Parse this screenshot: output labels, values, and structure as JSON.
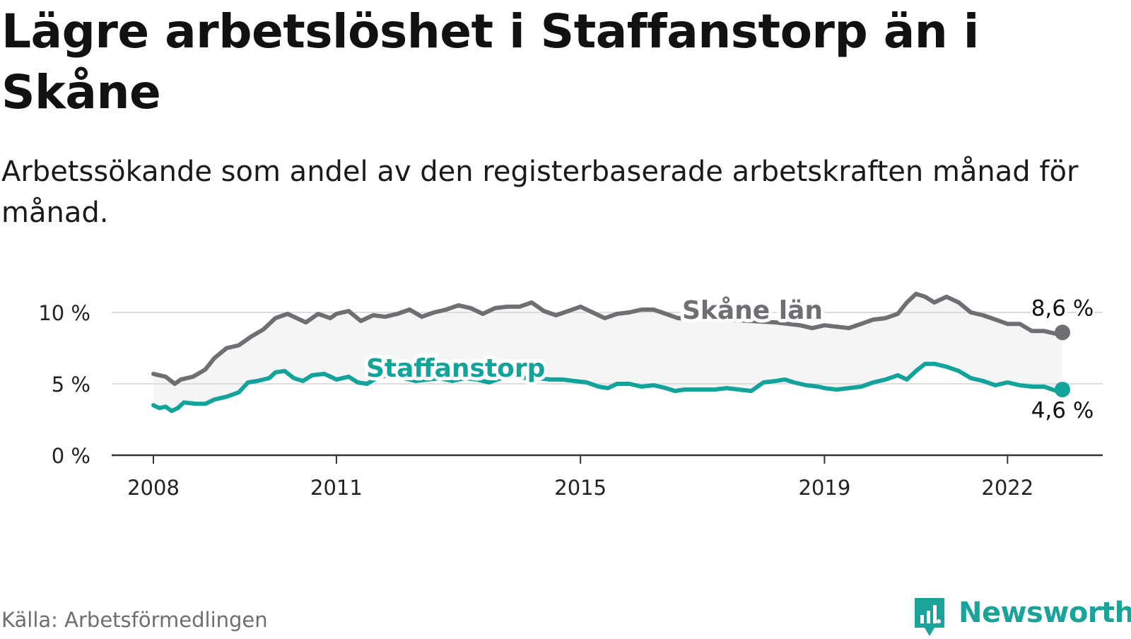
{
  "title": "Lägre arbetslöshet i Staffanstorp än i Skåne",
  "subtitle": "Arbetssökande som andel av den registerbaserade arbetskraften månad för månad.",
  "source": "Källa: Arbetsförmedlingen",
  "brand": {
    "name": "Newsworthy",
    "color": "#1aa39a",
    "icon": "bar-chart-speech-bubble-icon"
  },
  "colors": {
    "skane": "#6f6e73",
    "staffanstorp": "#12a39a",
    "band": "#f5f5f5",
    "grid": "#dddddd",
    "axis": "#333333"
  },
  "chart_data": {
    "type": "line",
    "ylim": [
      0,
      10.5
    ],
    "yticks": [
      {
        "value": 0,
        "label": "0 %"
      },
      {
        "value": 5,
        "label": "5 %"
      },
      {
        "value": 10,
        "label": "10 %"
      }
    ],
    "xticks": [
      {
        "value": 2008,
        "label": "2008"
      },
      {
        "value": 2011,
        "label": "2011"
      },
      {
        "value": 2015,
        "label": "2015"
      },
      {
        "value": 2019,
        "label": "2019"
      },
      {
        "value": 2022,
        "label": "2022"
      }
    ],
    "grid": true,
    "series": [
      {
        "name": "Skåne län",
        "color": "#6f6e73",
        "end_label": "8,6 %",
        "points": [
          [
            2008.0,
            5.7
          ],
          [
            2008.2,
            5.5
          ],
          [
            2008.35,
            5.0
          ],
          [
            2008.45,
            5.3
          ],
          [
            2008.65,
            5.5
          ],
          [
            2008.85,
            6.0
          ],
          [
            2009.0,
            6.8
          ],
          [
            2009.2,
            7.5
          ],
          [
            2009.4,
            7.7
          ],
          [
            2009.6,
            8.3
          ],
          [
            2009.8,
            8.8
          ],
          [
            2010.0,
            9.6
          ],
          [
            2010.2,
            9.9
          ],
          [
            2010.35,
            9.6
          ],
          [
            2010.5,
            9.3
          ],
          [
            2010.7,
            9.9
          ],
          [
            2010.9,
            9.6
          ],
          [
            2011.0,
            9.9
          ],
          [
            2011.2,
            10.1
          ],
          [
            2011.4,
            9.4
          ],
          [
            2011.6,
            9.8
          ],
          [
            2011.8,
            9.7
          ],
          [
            2012.0,
            9.9
          ],
          [
            2012.2,
            10.2
          ],
          [
            2012.4,
            9.7
          ],
          [
            2012.6,
            10.0
          ],
          [
            2012.8,
            10.2
          ],
          [
            2013.0,
            10.5
          ],
          [
            2013.2,
            10.3
          ],
          [
            2013.4,
            9.9
          ],
          [
            2013.6,
            10.3
          ],
          [
            2013.8,
            10.4
          ],
          [
            2014.0,
            10.4
          ],
          [
            2014.2,
            10.7
          ],
          [
            2014.4,
            10.1
          ],
          [
            2014.6,
            9.8
          ],
          [
            2014.8,
            10.1
          ],
          [
            2015.0,
            10.4
          ],
          [
            2015.2,
            10.0
          ],
          [
            2015.4,
            9.6
          ],
          [
            2015.6,
            9.9
          ],
          [
            2015.8,
            10.0
          ],
          [
            2016.0,
            10.2
          ],
          [
            2016.2,
            10.2
          ],
          [
            2016.4,
            9.9
          ],
          [
            2016.6,
            9.6
          ],
          [
            2016.8,
            9.6
          ],
          [
            2017.0,
            9.7
          ],
          [
            2017.4,
            9.5
          ],
          [
            2017.8,
            9.4
          ],
          [
            2018.2,
            9.3
          ],
          [
            2018.6,
            9.1
          ],
          [
            2018.8,
            8.9
          ],
          [
            2019.0,
            9.1
          ],
          [
            2019.2,
            9.0
          ],
          [
            2019.4,
            8.9
          ],
          [
            2019.6,
            9.2
          ],
          [
            2019.8,
            9.5
          ],
          [
            2020.0,
            9.6
          ],
          [
            2020.2,
            9.9
          ],
          [
            2020.35,
            10.7
          ],
          [
            2020.5,
            11.3
          ],
          [
            2020.65,
            11.1
          ],
          [
            2020.8,
            10.7
          ],
          [
            2021.0,
            11.1
          ],
          [
            2021.2,
            10.7
          ],
          [
            2021.4,
            10.0
          ],
          [
            2021.6,
            9.8
          ],
          [
            2021.8,
            9.5
          ],
          [
            2022.0,
            9.2
          ],
          [
            2022.2,
            9.2
          ],
          [
            2022.4,
            8.7
          ],
          [
            2022.6,
            8.7
          ],
          [
            2022.8,
            8.5
          ],
          [
            2022.9,
            8.6
          ]
        ]
      },
      {
        "name": "Staffanstorp",
        "color": "#12a39a",
        "end_label": "4,6 %",
        "points": [
          [
            2008.0,
            3.5
          ],
          [
            2008.1,
            3.3
          ],
          [
            2008.2,
            3.4
          ],
          [
            2008.3,
            3.1
          ],
          [
            2008.4,
            3.3
          ],
          [
            2008.5,
            3.7
          ],
          [
            2008.7,
            3.6
          ],
          [
            2008.85,
            3.6
          ],
          [
            2009.0,
            3.9
          ],
          [
            2009.2,
            4.1
          ],
          [
            2009.4,
            4.4
          ],
          [
            2009.55,
            5.1
          ],
          [
            2009.7,
            5.2
          ],
          [
            2009.9,
            5.4
          ],
          [
            2010.0,
            5.8
          ],
          [
            2010.15,
            5.9
          ],
          [
            2010.3,
            5.4
          ],
          [
            2010.45,
            5.2
          ],
          [
            2010.6,
            5.6
          ],
          [
            2010.8,
            5.7
          ],
          [
            2011.0,
            5.3
          ],
          [
            2011.2,
            5.5
          ],
          [
            2011.35,
            5.1
          ],
          [
            2011.5,
            5.0
          ],
          [
            2011.7,
            5.5
          ],
          [
            2011.9,
            5.6
          ],
          [
            2012.1,
            5.4
          ],
          [
            2012.3,
            5.2
          ],
          [
            2012.5,
            5.3
          ],
          [
            2012.7,
            5.4
          ],
          [
            2012.9,
            5.2
          ],
          [
            2013.1,
            5.4
          ],
          [
            2013.3,
            5.3
          ],
          [
            2013.5,
            5.1
          ],
          [
            2013.7,
            5.4
          ],
          [
            2013.9,
            5.6
          ],
          [
            2014.1,
            5.4
          ],
          [
            2014.3,
            5.4
          ],
          [
            2014.5,
            5.3
          ],
          [
            2014.7,
            5.3
          ],
          [
            2014.9,
            5.2
          ],
          [
            2015.1,
            5.1
          ],
          [
            2015.3,
            4.8
          ],
          [
            2015.45,
            4.7
          ],
          [
            2015.6,
            5.0
          ],
          [
            2015.8,
            5.0
          ],
          [
            2016.0,
            4.8
          ],
          [
            2016.2,
            4.9
          ],
          [
            2016.4,
            4.7
          ],
          [
            2016.55,
            4.5
          ],
          [
            2016.7,
            4.6
          ],
          [
            2017.0,
            4.6
          ],
          [
            2017.2,
            4.6
          ],
          [
            2017.4,
            4.7
          ],
          [
            2017.6,
            4.6
          ],
          [
            2017.8,
            4.5
          ],
          [
            2018.0,
            5.1
          ],
          [
            2018.2,
            5.2
          ],
          [
            2018.35,
            5.3
          ],
          [
            2018.5,
            5.1
          ],
          [
            2018.7,
            4.9
          ],
          [
            2018.9,
            4.8
          ],
          [
            2019.0,
            4.7
          ],
          [
            2019.2,
            4.6
          ],
          [
            2019.4,
            4.7
          ],
          [
            2019.6,
            4.8
          ],
          [
            2019.8,
            5.1
          ],
          [
            2020.0,
            5.3
          ],
          [
            2020.2,
            5.6
          ],
          [
            2020.35,
            5.3
          ],
          [
            2020.5,
            5.9
          ],
          [
            2020.65,
            6.4
          ],
          [
            2020.8,
            6.4
          ],
          [
            2021.0,
            6.2
          ],
          [
            2021.2,
            5.9
          ],
          [
            2021.4,
            5.4
          ],
          [
            2021.6,
            5.2
          ],
          [
            2021.8,
            4.9
          ],
          [
            2022.0,
            5.1
          ],
          [
            2022.2,
            4.9
          ],
          [
            2022.4,
            4.8
          ],
          [
            2022.6,
            4.8
          ],
          [
            2022.8,
            4.5
          ],
          [
            2022.9,
            4.6
          ]
        ]
      }
    ]
  }
}
